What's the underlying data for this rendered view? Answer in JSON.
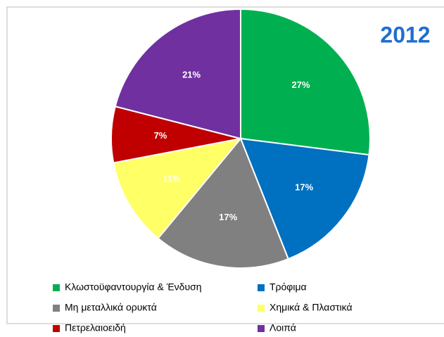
{
  "chart_data": {
    "type": "pie",
    "title": "2012",
    "categories": [
      "Κλωστοϋφαντουργία & Ένδυση",
      "Τρόφιμα",
      "Μη μεταλλικά ορυκτά",
      "Χημικά & Πλαστικά",
      "Πετρελαιοειδή",
      "Λοιπά"
    ],
    "values": [
      27,
      17,
      17,
      11,
      7,
      21
    ],
    "value_labels": [
      "27%",
      "17%",
      "17%",
      "11%",
      "7%",
      "21%"
    ],
    "colors": [
      "#00b050",
      "#0070c0",
      "#808080",
      "#ffff66",
      "#c00000",
      "#7030a0"
    ]
  }
}
